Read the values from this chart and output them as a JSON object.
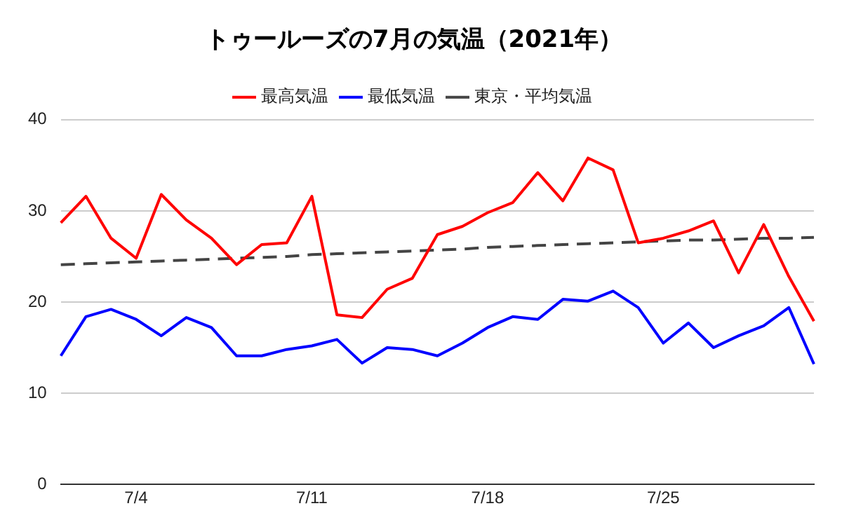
{
  "chart_data": {
    "type": "line",
    "title": "トゥールーズの7月の気温（2021年）",
    "categories": [
      null,
      null,
      null,
      "7/4",
      null,
      null,
      null,
      null,
      null,
      null,
      "7/11",
      null,
      null,
      null,
      null,
      null,
      null,
      "7/18",
      null,
      null,
      null,
      null,
      null,
      null,
      "7/25",
      null,
      null,
      null,
      null,
      null,
      null
    ],
    "series": [
      {
        "name": "最高気温",
        "color": "#ff0000",
        "values": [
          28.7,
          31.6,
          27.0,
          24.8,
          31.8,
          29.0,
          27.0,
          24.1,
          26.3,
          26.5,
          31.6,
          18.6,
          18.3,
          21.4,
          22.6,
          27.4,
          28.3,
          29.8,
          30.9,
          34.2,
          31.1,
          35.8,
          34.5,
          26.5,
          27.0,
          27.8,
          28.9,
          23.2,
          28.5,
          22.8,
          17.9
        ]
      },
      {
        "name": "最低気温",
        "color": "#0000ff",
        "values": [
          14.1,
          18.4,
          19.2,
          18.1,
          16.3,
          18.3,
          17.2,
          14.1,
          14.1,
          14.8,
          15.2,
          15.9,
          13.3,
          15.0,
          14.8,
          14.1,
          15.5,
          17.2,
          18.4,
          18.1,
          20.3,
          20.1,
          21.2,
          19.4,
          15.5,
          17.7,
          15.0,
          16.3,
          17.4,
          19.4,
          13.2
        ]
      },
      {
        "name": "東京・平均気温",
        "color": "#444444",
        "line_style": "dashed",
        "values": [
          24.1,
          24.2,
          24.3,
          24.4,
          24.5,
          24.6,
          24.7,
          24.8,
          24.9,
          25.0,
          25.2,
          25.3,
          25.4,
          25.5,
          25.6,
          25.7,
          25.8,
          26.0,
          26.1,
          26.2,
          26.3,
          26.4,
          26.5,
          26.6,
          26.7,
          26.8,
          26.8,
          26.9,
          27.0,
          27.0,
          27.1
        ]
      }
    ],
    "ylim": [
      0,
      40
    ],
    "yticks": [
      0,
      10,
      20,
      30,
      40
    ],
    "grid": "y",
    "legend": "top",
    "marker": "none"
  }
}
